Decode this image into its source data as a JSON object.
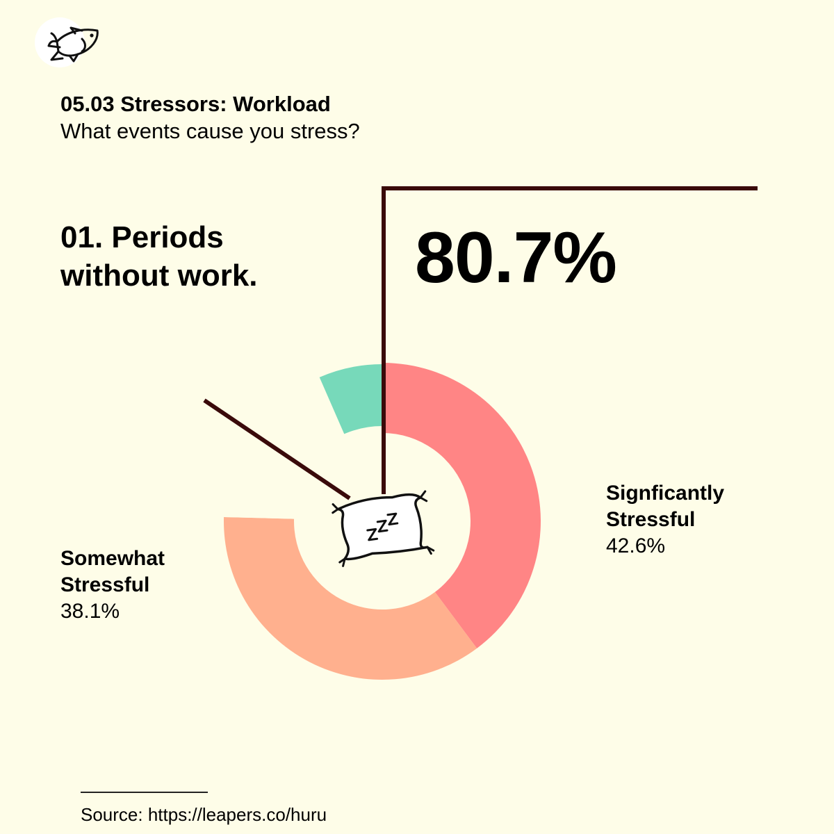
{
  "header": {
    "title": "05.03 Stressors: Workload",
    "subtitle": "What events cause you stress?"
  },
  "question": "01. Periods without work.",
  "highlight": "80.7%",
  "chart_data": {
    "type": "pie",
    "variant": "donut",
    "slices": [
      {
        "label": "Signficantly Stressful",
        "value": 42.6,
        "color": "#FF8585"
      },
      {
        "label": "Somewhat Stressful",
        "value": 38.1,
        "color": "#FFB08E"
      },
      {
        "label": "",
        "value": 19.3,
        "color": "#FEFDE8"
      },
      {
        "label": "",
        "value": 7.0,
        "color": "#77D9BA"
      }
    ],
    "legend": [
      {
        "name": "Signficantly Stressful",
        "value_label": "42.6%"
      },
      {
        "name": "Somewhat Stressful",
        "value_label": "38.1%"
      }
    ],
    "center_icon": "pillow-sleep-icon"
  },
  "footer": {
    "source": "Source: https://leapers.co/huru"
  },
  "colors": {
    "background": "#FEFDE8",
    "leader_line": "#3A0A0A",
    "ink": "#000000"
  },
  "icons": {
    "logo": "fish-icon"
  }
}
